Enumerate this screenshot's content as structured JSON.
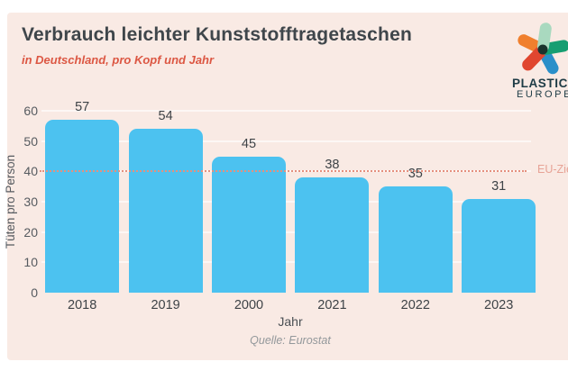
{
  "colors": {
    "page_background": "#FFFFFF",
    "card_background": "#F9EAE4",
    "bar": "#4CC2F0",
    "title_text": "#3F464B",
    "subtitle_text": "#DC5743",
    "axis_text": "#565B60",
    "reference_line": "#E5907E",
    "reference_label_text": "#E7A396"
  },
  "logo": {
    "line1": "PLASTICS",
    "line2": "EUROPE",
    "star_petal_colors": {
      "top": "#A9D9BF",
      "upper_right": "#169E72",
      "lower_right": "#2A8FC9",
      "lower_left": "#E0462F",
      "upper_left": "#F07F2D",
      "center_overlap": "#1A332C"
    }
  },
  "chart_data": {
    "type": "bar",
    "title": "Verbrauch leichter Kunststofftragetaschen",
    "subtitle": "in Deutschland, pro Kopf und Jahr",
    "categories": [
      "2018",
      "2019",
      "2000",
      "2021",
      "2022",
      "2023"
    ],
    "values": [
      57,
      54,
      45,
      38,
      35,
      31
    ],
    "xlabel": "Jahr",
    "ylabel": "Tüten pro Person",
    "ylim": [
      0,
      60
    ],
    "yticks": [
      0,
      10,
      20,
      30,
      40,
      50,
      60
    ],
    "grid": "horizontal",
    "legend": "none",
    "bar_color": "#4CC2F0",
    "reference_line": {
      "value": 40,
      "label": "EU-Ziel",
      "style": "dotted",
      "color": "#E5907E"
    },
    "source": "Quelle: Eurostat"
  }
}
